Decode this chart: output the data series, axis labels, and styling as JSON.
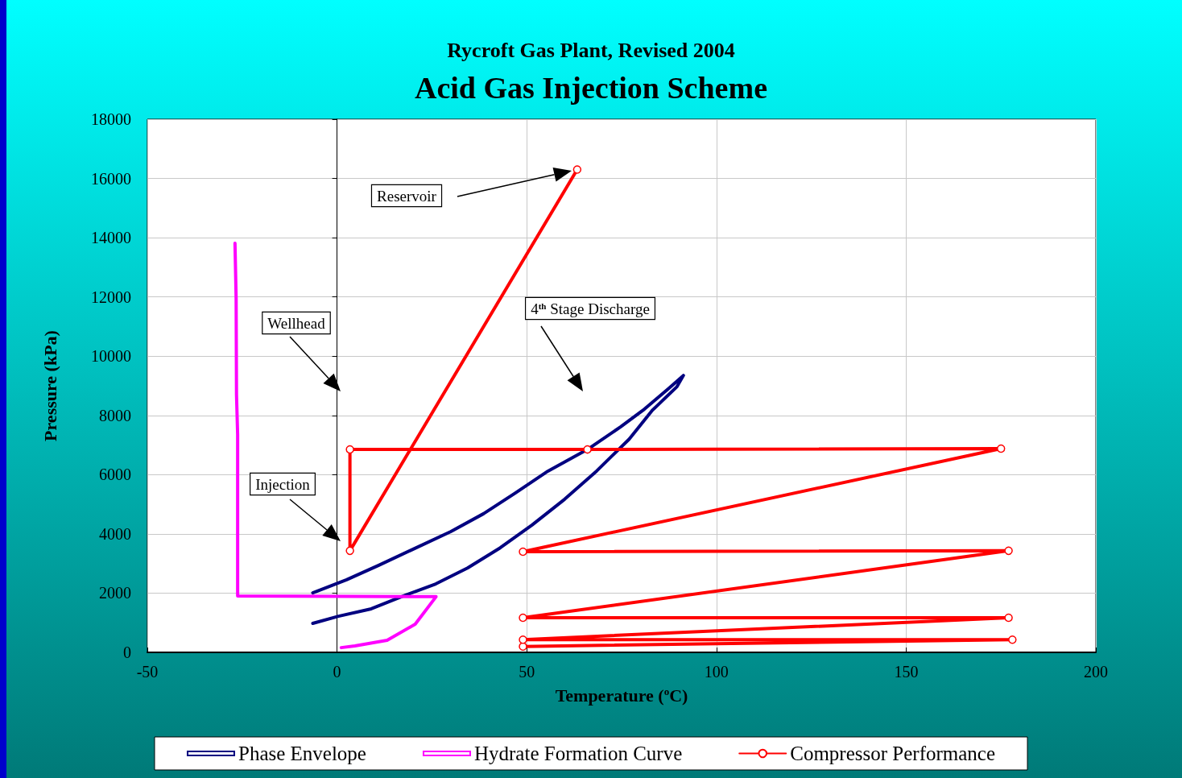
{
  "chart_data": {
    "type": "line",
    "title": "Acid Gas Injection Scheme",
    "subtitle": "Rycroft Gas Plant, Revised 2004",
    "xlabel": "Temperature ($^{o}$C)",
    "ylabel": "Pressure (kPa)",
    "xlim": [
      -50,
      200
    ],
    "xticks": [
      -50,
      0,
      50,
      100,
      150,
      200
    ],
    "ylim": [
      0,
      18000
    ],
    "yticks": [
      0,
      2000,
      4000,
      6000,
      8000,
      10000,
      12000,
      14000,
      16000,
      18000
    ],
    "grid": true,
    "legend": "bottom",
    "series": [
      {
        "name": "Phase Envelope",
        "color": "#000080",
        "marker": "none",
        "x": [
          -6.4,
          0.4,
          9,
          17.4,
          26,
          34.4,
          43,
          51.4,
          60,
          68.4,
          77,
          83,
          89.6,
          91.3,
          87.5,
          81,
          74.7,
          66,
          55.6,
          47,
          38.6,
          30,
          19.5,
          11,
          2.5,
          -6.4
        ],
        "values": [
          980,
          1220,
          1470,
          1900,
          2310,
          2850,
          3530,
          4300,
          5170,
          6120,
          7200,
          8160,
          8970,
          9350,
          8920,
          8210,
          7610,
          6850,
          6120,
          5380,
          4680,
          4080,
          3450,
          2940,
          2450,
          2010
        ]
      },
      {
        "name": "Hydrate Formation Curve",
        "color": "#ff00ff",
        "marker": "none",
        "x": [
          -26.9,
          -26.6,
          -26.5,
          -26.2,
          -26.2,
          26.1,
          20.6,
          13.2,
          4.7,
          1.1
        ],
        "values": [
          13810,
          11960,
          8700,
          7340,
          1900,
          1880,
          950,
          410,
          220,
          160
        ]
      },
      {
        "name": "Compressor Performance",
        "color": "#ff0000",
        "marker": "circle",
        "x": [
          49,
          178,
          49,
          177,
          49,
          177,
          49,
          175,
          66,
          3.4,
          3.4,
          63.3
        ],
        "values": [
          200,
          430,
          430,
          1170,
          1170,
          3430,
          3400,
          6880,
          6850,
          6850,
          3430,
          16300
        ]
      }
    ],
    "annotations": [
      "Reservoir",
      "Wellhead",
      "Injection",
      "4$^{th}$ Stage Discharge"
    ]
  }
}
